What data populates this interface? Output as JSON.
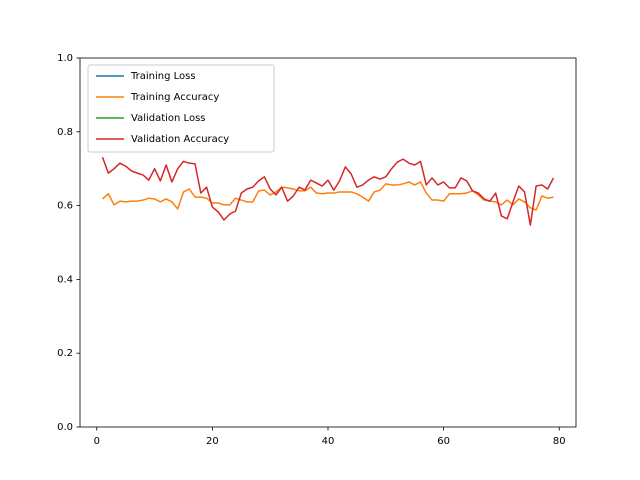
{
  "chart_data": {
    "type": "line",
    "x": [
      1,
      2,
      3,
      4,
      5,
      6,
      7,
      8,
      9,
      10,
      11,
      12,
      13,
      14,
      15,
      16,
      17,
      18,
      19,
      20,
      21,
      22,
      23,
      24,
      25,
      26,
      27,
      28,
      29,
      30,
      31,
      32,
      33,
      34,
      35,
      36,
      37,
      38,
      39,
      40,
      41,
      42,
      43,
      44,
      45,
      46,
      47,
      48,
      49,
      50,
      51,
      52,
      53,
      54,
      55,
      56,
      57,
      58,
      59,
      60,
      61,
      62,
      63,
      64,
      65,
      66,
      67,
      68,
      69,
      70,
      71,
      72,
      73,
      74,
      75,
      76,
      77,
      78,
      79
    ],
    "series": [
      {
        "name": "Training Loss",
        "color": "#1f77b4",
        "values": [
          null,
          null,
          null,
          null,
          null,
          null,
          null,
          null,
          null,
          null,
          null,
          null,
          null,
          null,
          null,
          null,
          null,
          null,
          null,
          null,
          null,
          null,
          null,
          null,
          null,
          null,
          null,
          null,
          null,
          null,
          null,
          null,
          null,
          null,
          null,
          null,
          null,
          null,
          null,
          null,
          null,
          null,
          null,
          null,
          null,
          null,
          null,
          null,
          null,
          null,
          null,
          null,
          null,
          null,
          null,
          null,
          null,
          null,
          null,
          null,
          null,
          null,
          null,
          null,
          null,
          null,
          null,
          null,
          null,
          null,
          null,
          null,
          null,
          null,
          null,
          null,
          null,
          null,
          null
        ]
      },
      {
        "name": "Training Accuracy",
        "color": "#ff7f0e",
        "values": [
          0.618,
          0.632,
          0.602,
          0.612,
          0.61,
          0.612,
          0.612,
          0.615,
          0.62,
          0.618,
          0.61,
          0.618,
          0.61,
          0.591,
          0.637,
          0.645,
          0.623,
          0.623,
          0.62,
          0.607,
          0.607,
          0.602,
          0.602,
          0.62,
          0.615,
          0.61,
          0.61,
          0.64,
          0.642,
          0.629,
          0.637,
          0.65,
          0.648,
          0.645,
          0.64,
          0.64,
          0.65,
          0.634,
          0.632,
          0.634,
          0.634,
          0.637,
          0.637,
          0.637,
          0.632,
          0.623,
          0.612,
          0.637,
          0.642,
          0.659,
          0.656,
          0.656,
          0.659,
          0.664,
          0.656,
          0.664,
          0.634,
          0.615,
          0.615,
          0.612,
          0.632,
          0.632,
          0.632,
          0.634,
          0.64,
          0.629,
          0.615,
          0.612,
          0.61,
          0.602,
          0.615,
          0.602,
          0.618,
          0.61,
          0.594,
          0.588,
          0.626,
          0.62,
          0.623
        ]
      },
      {
        "name": "Validation Loss",
        "color": "#2ca02c",
        "values": [
          null,
          null,
          null,
          null,
          null,
          null,
          null,
          null,
          null,
          null,
          null,
          null,
          null,
          null,
          null,
          null,
          null,
          null,
          null,
          null,
          null,
          null,
          null,
          null,
          null,
          null,
          null,
          null,
          null,
          null,
          null,
          null,
          null,
          null,
          null,
          null,
          null,
          null,
          null,
          null,
          null,
          null,
          null,
          null,
          null,
          null,
          null,
          null,
          null,
          null,
          null,
          null,
          null,
          null,
          null,
          null,
          null,
          null,
          null,
          null,
          null,
          null,
          null,
          null,
          null,
          null,
          null,
          null,
          null,
          null,
          null,
          null,
          null,
          null,
          null,
          null,
          null,
          null,
          null
        ]
      },
      {
        "name": "Validation Accuracy",
        "color": "#d62728",
        "values": [
          0.731,
          0.688,
          0.7,
          0.715,
          0.707,
          0.694,
          0.688,
          0.683,
          0.669,
          0.7,
          0.667,
          0.71,
          0.664,
          0.7,
          0.72,
          0.715,
          0.713,
          0.634,
          0.65,
          0.596,
          0.583,
          0.561,
          0.577,
          0.585,
          0.634,
          0.645,
          0.65,
          0.667,
          0.678,
          0.645,
          0.629,
          0.65,
          0.612,
          0.626,
          0.65,
          0.642,
          0.669,
          0.661,
          0.653,
          0.669,
          0.642,
          0.667,
          0.705,
          0.686,
          0.65,
          0.656,
          0.669,
          0.678,
          0.672,
          0.678,
          0.7,
          0.718,
          0.726,
          0.715,
          0.71,
          0.72,
          0.656,
          0.675,
          0.656,
          0.664,
          0.648,
          0.648,
          0.675,
          0.667,
          0.64,
          0.634,
          0.618,
          0.612,
          0.634,
          0.572,
          0.564,
          0.61,
          0.653,
          0.637,
          0.547,
          0.653,
          0.656,
          0.645,
          0.675
        ]
      }
    ],
    "xlim": [
      -2.9,
      82.9
    ],
    "xticks": [
      0,
      20,
      40,
      60,
      80
    ],
    "ylim": [
      0,
      1
    ],
    "yticks": [
      {
        "value": 0,
        "label": "0.0"
      },
      {
        "value": 0.2,
        "label": "0.2"
      },
      {
        "value": 0.4,
        "label": "0.4"
      },
      {
        "value": 0.6,
        "label": "0.6"
      },
      {
        "value": 0.8,
        "label": "0.8"
      },
      {
        "value": 1,
        "label": "1.0"
      }
    ],
    "grid": false,
    "legend": "upper left"
  }
}
